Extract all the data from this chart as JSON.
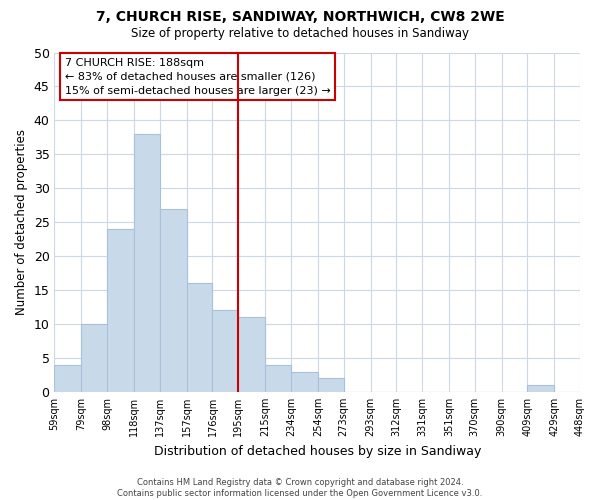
{
  "title": "7, CHURCH RISE, SANDIWAY, NORTHWICH, CW8 2WE",
  "subtitle": "Size of property relative to detached houses in Sandiway",
  "xlabel": "Distribution of detached houses by size in Sandiway",
  "ylabel": "Number of detached properties",
  "bar_color": "#c8daea",
  "bar_edge_color": "#a8c0d8",
  "bin_edges": [
    59,
    79,
    98,
    118,
    137,
    157,
    176,
    195,
    215,
    234,
    254,
    273,
    293,
    312,
    331,
    351,
    370,
    390,
    409,
    429,
    448
  ],
  "bin_labels": [
    "59sqm",
    "79sqm",
    "98sqm",
    "118sqm",
    "137sqm",
    "157sqm",
    "176sqm",
    "195sqm",
    "215sqm",
    "234sqm",
    "254sqm",
    "273sqm",
    "293sqm",
    "312sqm",
    "331sqm",
    "351sqm",
    "370sqm",
    "390sqm",
    "409sqm",
    "429sqm",
    "448sqm"
  ],
  "bar_heights": [
    4,
    10,
    24,
    38,
    27,
    16,
    12,
    11,
    4,
    3,
    2,
    0,
    0,
    0,
    0,
    0,
    0,
    0,
    1,
    0,
    0
  ],
  "vline_x": 195,
  "vline_color": "#cc0000",
  "ylim": [
    0,
    50
  ],
  "yticks": [
    0,
    5,
    10,
    15,
    20,
    25,
    30,
    35,
    40,
    45,
    50
  ],
  "annotation_title": "7 CHURCH RISE: 188sqm",
  "annotation_line1": "← 83% of detached houses are smaller (126)",
  "annotation_line2": "15% of semi-detached houses are larger (23) →",
  "footer1": "Contains HM Land Registry data © Crown copyright and database right 2024.",
  "footer2": "Contains public sector information licensed under the Open Government Licence v3.0.",
  "background_color": "#ffffff",
  "grid_color": "#ccd8e4"
}
